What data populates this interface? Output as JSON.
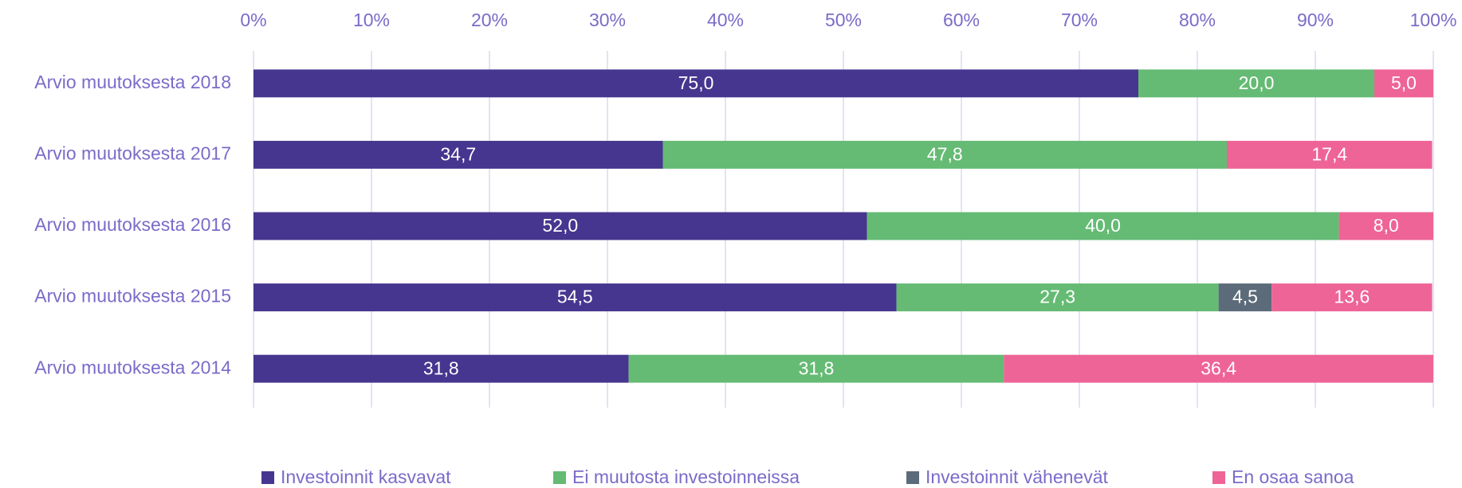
{
  "chart_data": {
    "type": "stacked_barh",
    "categories": [
      "Arvio muutoksesta 2018",
      "Arvio muutoksesta 2017",
      "Arvio muutoksesta 2016",
      "Arvio muutoksesta 2015",
      "Arvio muutoksesta 2014"
    ],
    "series": [
      {
        "name": "Investoinnit kasvavat",
        "color": "#46368f",
        "values": [
          75.0,
          34.7,
          52.0,
          54.5,
          31.8
        ],
        "value_labels": [
          "75,0",
          "34,7",
          "52,0",
          "54,5",
          "31,8"
        ]
      },
      {
        "name": "Ei muutosta investoinneissa",
        "color": "#65bb74",
        "values": [
          20.0,
          47.8,
          40.0,
          27.3,
          31.8
        ],
        "value_labels": [
          "20,0",
          "47,8",
          "40,0",
          "27,3",
          "31,8"
        ]
      },
      {
        "name": "Investoinnit vähenevät",
        "color": "#5c6b7a",
        "values": [
          null,
          null,
          null,
          4.5,
          null
        ],
        "value_labels": [
          null,
          null,
          null,
          "4,5",
          null
        ]
      },
      {
        "name": "En osaa sanoa",
        "color": "#ee6496",
        "values": [
          5.0,
          17.4,
          8.0,
          13.6,
          36.4
        ],
        "value_labels": [
          "5,0",
          "17,4",
          "8,0",
          "13,6",
          "36,4"
        ]
      }
    ],
    "xlim": [
      0,
      100
    ],
    "xticks": [
      {
        "value": 0,
        "label": "0%"
      },
      {
        "value": 10,
        "label": "10%"
      },
      {
        "value": 20,
        "label": "20%"
      },
      {
        "value": 30,
        "label": "30%"
      },
      {
        "value": 40,
        "label": "40%"
      },
      {
        "value": 50,
        "label": "50%"
      },
      {
        "value": 60,
        "label": "60%"
      },
      {
        "value": 70,
        "label": "70%"
      },
      {
        "value": 80,
        "label": "80%"
      },
      {
        "value": 90,
        "label": "90%"
      },
      {
        "value": 100,
        "label": "100%"
      }
    ],
    "grid": true,
    "legend": "bottom"
  }
}
